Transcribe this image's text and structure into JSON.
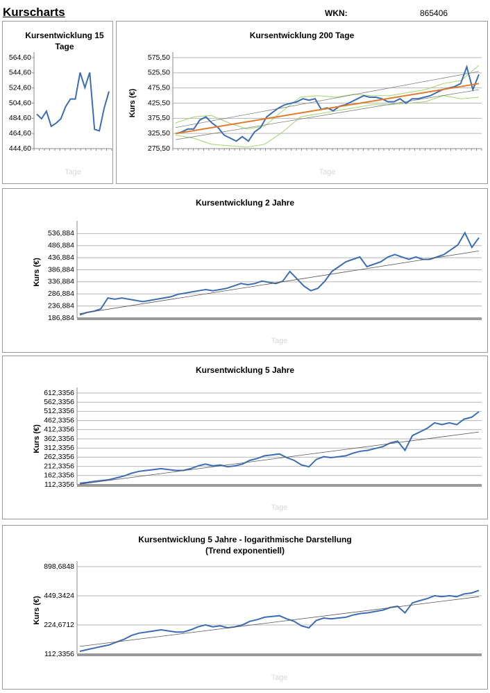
{
  "header": {
    "title": "Kurscharts",
    "wkn_label": "WKN:",
    "wkn": "865406"
  },
  "chart_data": [
    {
      "type": "line",
      "title": [
        "Kursentwicklung 15 Tage"
      ],
      "xlabel": "Tage",
      "ylim": [
        444.6,
        564.6
      ],
      "yticks": [
        {
          "value": 444.6,
          "label": "444,60"
        },
        {
          "value": 464.6,
          "label": "464,60"
        },
        {
          "value": 484.6,
          "label": "484,60"
        },
        {
          "value": 504.6,
          "label": "504,60"
        },
        {
          "value": 524.6,
          "label": "524,60"
        },
        {
          "value": 544.6,
          "label": "544,60"
        },
        {
          "value": 564.6,
          "label": "564,60"
        }
      ],
      "grid": false,
      "series": [
        {
          "color": "#3a6db5",
          "values": [
            490,
            484,
            494,
            474,
            478,
            484,
            500,
            510,
            510,
            545,
            525,
            545,
            470,
            468,
            498,
            520
          ]
        }
      ]
    },
    {
      "type": "line",
      "title": [
        "Kursentwicklung 200 Tage"
      ],
      "xlabel": "Tage",
      "ylabel": "Kurs (€)",
      "ylim": [
        275.5,
        575.5
      ],
      "yticks": [
        {
          "value": 275.5,
          "label": "275,50"
        },
        {
          "value": 325.5,
          "label": "325,50"
        },
        {
          "value": 375.5,
          "label": "375,50"
        },
        {
          "value": 425.5,
          "label": "425,50"
        },
        {
          "value": 475.5,
          "label": "475,50"
        },
        {
          "value": 525.5,
          "label": "525,50"
        },
        {
          "value": 575.5,
          "label": "575,50"
        }
      ],
      "grid": true,
      "series": [
        {
          "color": "#9fd66a",
          "values": [
            360,
            380,
            385,
            360,
            340,
            350,
            400,
            445,
            450,
            445,
            455,
            450,
            450,
            460,
            470,
            490,
            500,
            550
          ]
        },
        {
          "color": "#9fd66a",
          "values": [
            320,
            310,
            290,
            285,
            280,
            290,
            330,
            380,
            390,
            400,
            410,
            420,
            420,
            425,
            430,
            450,
            440,
            445
          ]
        },
        {
          "color": "#808080",
          "values": [
            345,
            530
          ]
        },
        {
          "color": "#808080",
          "values": [
            305,
            470
          ]
        },
        {
          "color": "#3a6db5",
          "values": [
            325,
            330,
            340,
            340,
            370,
            380,
            360,
            345,
            320,
            310,
            300,
            315,
            300,
            330,
            345,
            380,
            395,
            410,
            420,
            425,
            430,
            440,
            435,
            440,
            405,
            410,
            400,
            415,
            420,
            430,
            440,
            450,
            445,
            445,
            440,
            430,
            430,
            440,
            425,
            440,
            440,
            445,
            450,
            460,
            470,
            475,
            480,
            490,
            545,
            470,
            520
          ]
        },
        {
          "color": "#e07a2a",
          "values": [
            325,
            490
          ]
        }
      ]
    },
    {
      "type": "line",
      "title": [
        "Kursentwicklung 2 Jahre"
      ],
      "xlabel": "Tage",
      "ylabel": "Kurs (€)",
      "ylim": [
        186.884,
        566.884
      ],
      "yticks": [
        {
          "value": 186.884,
          "label": "186,884"
        },
        {
          "value": 236.884,
          "label": "236,884"
        },
        {
          "value": 286.884,
          "label": "286,884"
        },
        {
          "value": 336.884,
          "label": "336,884"
        },
        {
          "value": 386.884,
          "label": "386,884"
        },
        {
          "value": 436.884,
          "label": "436,884"
        },
        {
          "value": 486.884,
          "label": "486,884"
        },
        {
          "value": 536.884,
          "label": "536,884"
        }
      ],
      "grid": true,
      "series": [
        {
          "color": "#3a6db5",
          "values": [
            200,
            210,
            215,
            225,
            270,
            265,
            270,
            265,
            260,
            255,
            260,
            265,
            270,
            275,
            285,
            290,
            295,
            300,
            305,
            300,
            305,
            310,
            320,
            330,
            325,
            330,
            340,
            335,
            330,
            340,
            380,
            350,
            320,
            300,
            310,
            340,
            380,
            400,
            420,
            430,
            440,
            400,
            410,
            420,
            440,
            450,
            440,
            430,
            440,
            430,
            430,
            440,
            450,
            470,
            490,
            540,
            480,
            520
          ]
        },
        {
          "color": "#555555",
          "values": [
            205,
            465
          ]
        }
      ]
    },
    {
      "type": "line",
      "title": [
        "Kursentwicklung 5 Jahre"
      ],
      "xlabel": "Tage",
      "ylabel": "Kurs (€)",
      "ylim": [
        112.3356,
        612.3356
      ],
      "yticks": [
        {
          "value": 112.3356,
          "label": "112,3356"
        },
        {
          "value": 162.3356,
          "label": "162,3356"
        },
        {
          "value": 212.3356,
          "label": "212,3356"
        },
        {
          "value": 262.3356,
          "label": "262,3356"
        },
        {
          "value": 312.3356,
          "label": "312,3356"
        },
        {
          "value": 362.3356,
          "label": "362,3356"
        },
        {
          "value": 412.3356,
          "label": "412,3356"
        },
        {
          "value": 462.3356,
          "label": "462,3356"
        },
        {
          "value": 512.3356,
          "label": "512,3356"
        },
        {
          "value": 562.3356,
          "label": "562,3356"
        },
        {
          "value": 612.3356,
          "label": "612,3356"
        }
      ],
      "grid": true,
      "series": [
        {
          "color": "#3a6db5",
          "values": [
            120,
            125,
            130,
            135,
            140,
            150,
            160,
            175,
            185,
            190,
            195,
            200,
            195,
            190,
            190,
            200,
            215,
            225,
            215,
            220,
            210,
            215,
            225,
            245,
            255,
            270,
            275,
            280,
            260,
            245,
            220,
            210,
            250,
            265,
            260,
            265,
            270,
            285,
            295,
            300,
            310,
            320,
            340,
            350,
            300,
            380,
            400,
            420,
            450,
            440,
            450,
            440,
            470,
            480,
            510
          ]
        },
        {
          "color": "#555555",
          "values": [
            115,
            400
          ]
        }
      ]
    },
    {
      "type": "line",
      "title": [
        "Kursentwicklung 5 Jahre - logarithmische Darstellung",
        "(Trend exponentiell)"
      ],
      "xlabel": "Tage",
      "ylabel": "Kurs (€)",
      "log_scale": true,
      "ylim": [
        112.3356,
        898.6848
      ],
      "yticks": [
        {
          "value": 112.3356,
          "label": "112,3356"
        },
        {
          "value": 224.6712,
          "label": "224,6712"
        },
        {
          "value": 449.3424,
          "label": "449,3424"
        },
        {
          "value": 898.6848,
          "label": "898,6848"
        }
      ],
      "grid": true,
      "series": [
        {
          "color": "#3a6db5",
          "values": [
            120,
            125,
            130,
            135,
            140,
            150,
            160,
            175,
            185,
            190,
            195,
            200,
            195,
            190,
            190,
            200,
            215,
            225,
            215,
            220,
            210,
            215,
            225,
            245,
            255,
            270,
            275,
            280,
            260,
            245,
            220,
            210,
            250,
            265,
            260,
            265,
            270,
            285,
            295,
            300,
            310,
            320,
            340,
            350,
            300,
            380,
            400,
            420,
            450,
            440,
            450,
            440,
            470,
            480,
            510
          ]
        },
        {
          "color": "#555555",
          "values": [
            135,
            440
          ]
        }
      ]
    }
  ]
}
